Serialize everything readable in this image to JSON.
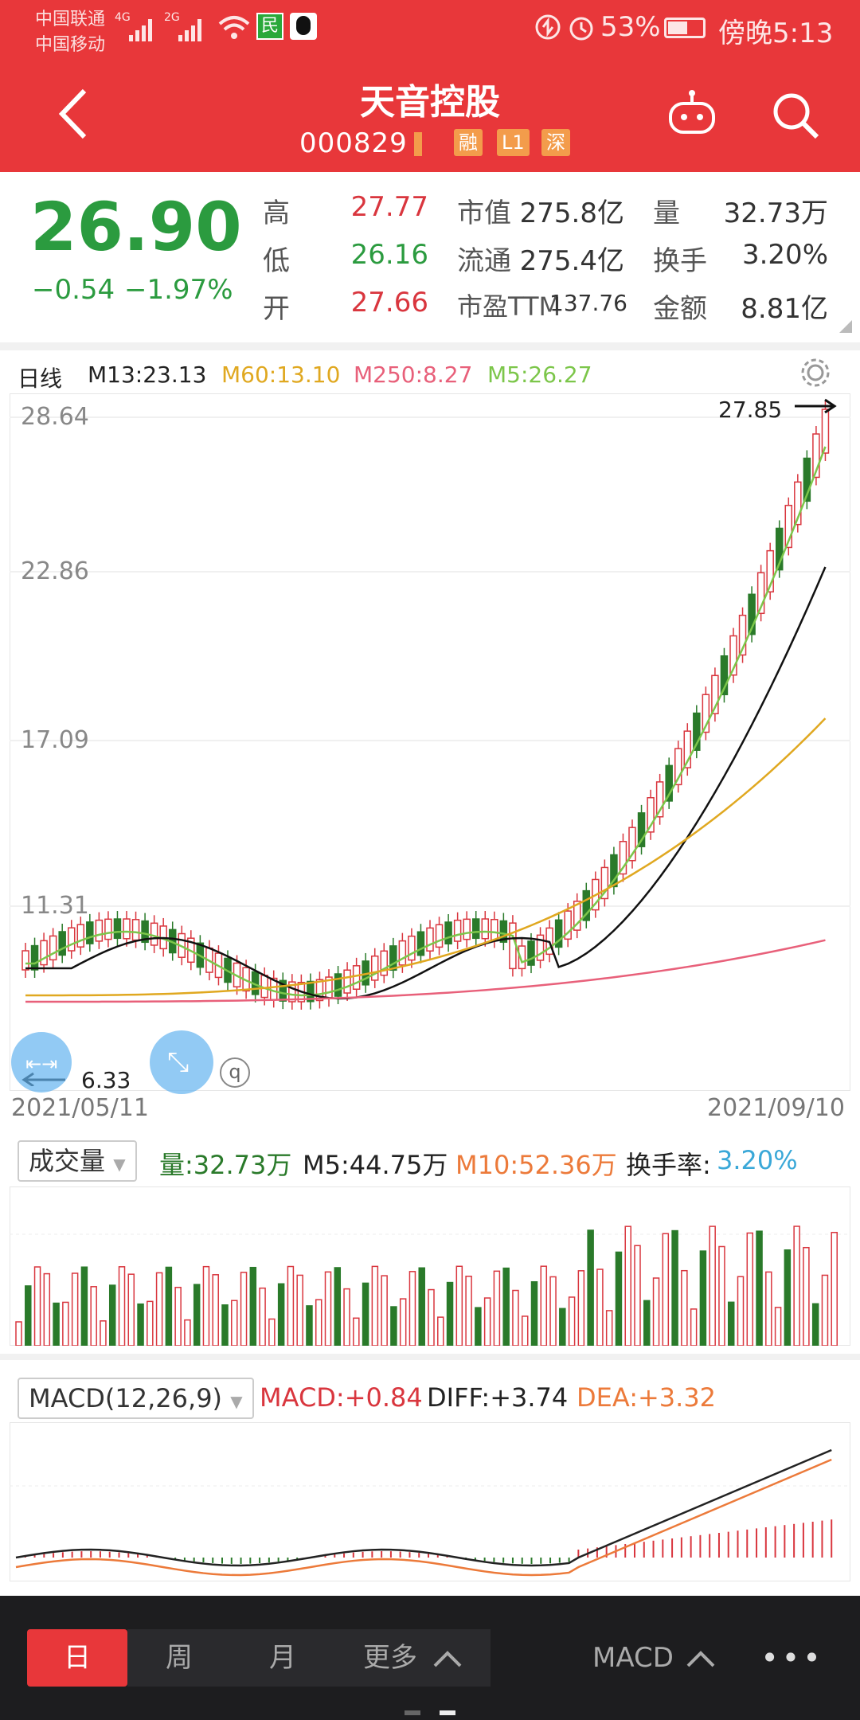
{
  "status_bar": {
    "carrier1": "中国联通",
    "carrier2": "中国移动",
    "net1": "4G",
    "net2": "2G",
    "battery": "53%",
    "time": "傍晚5:13"
  },
  "header": {
    "title": "天音控股",
    "code": "000829",
    "badges": [
      "融",
      "L1",
      "深"
    ]
  },
  "quote": {
    "price": "26.90",
    "change": "−0.54",
    "change_pct": "−1.97%",
    "high_label": "高",
    "high": "27.77",
    "low_label": "低",
    "low": "26.16",
    "open_label": "开",
    "open": "27.66",
    "mktcap_label": "市值",
    "mktcap": "275.8亿",
    "float_label": "流通",
    "float": "275.4亿",
    "pe_label": "市盈TTM",
    "pe": "137.76",
    "vol_label": "量",
    "vol": "32.73万",
    "turnover_label": "换手",
    "turnover": "3.20%",
    "amount_label": "金额",
    "amount": "8.81亿"
  },
  "kline": {
    "period": "日线",
    "ma13": "M13:23.13",
    "ma60": "M60:13.10",
    "ma250": "M250:8.27",
    "ma5": "M5:26.27",
    "y_ticks": [
      "28.64",
      "22.86",
      "17.09",
      "11.31"
    ],
    "max_label": "27.85",
    "min_label": "6.33",
    "start_date": "2021/05/11",
    "end_date": "2021/09/10",
    "colors": {
      "up": "#d9363e",
      "down": "#2a7a2a",
      "ma5": "#7cc64a",
      "ma13": "#111111",
      "ma60": "#e0a820",
      "ma250": "#e8607a"
    }
  },
  "volume": {
    "selector": "成交量",
    "vol": "量:32.73万",
    "m5": "M5:44.75万",
    "m10": "M10:52.36万",
    "turnover_label": "换手率:",
    "turnover": "3.20%"
  },
  "macd": {
    "selector": "MACD(12,26,9)",
    "macd": "MACD:+0.84",
    "diff": "DIFF:+3.74",
    "dea": "DEA:+3.32"
  },
  "bottom_bar": {
    "tabs": [
      "日",
      "周",
      "月",
      "更多"
    ],
    "indicator": "MACD",
    "more": "•••"
  }
}
